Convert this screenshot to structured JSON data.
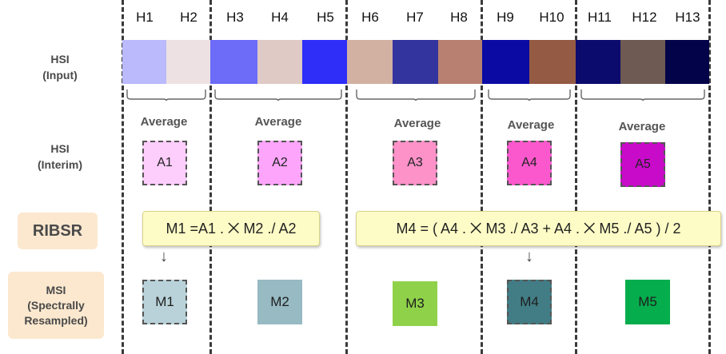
{
  "bands": [
    {
      "label": "H1",
      "color": "#babafd"
    },
    {
      "label": "H2",
      "color": "#ede1e3"
    },
    {
      "label": "H3",
      "color": "#6c6cf9"
    },
    {
      "label": "H4",
      "color": "#dfcac5"
    },
    {
      "label": "H5",
      "color": "#2e2ef8"
    },
    {
      "label": "H6",
      "color": "#d3b1a2"
    },
    {
      "label": "H7",
      "color": "#34349f"
    },
    {
      "label": "H8",
      "color": "#b88070"
    },
    {
      "label": "H9",
      "color": "#0b0ba3"
    },
    {
      "label": "H10",
      "color": "#945a43"
    },
    {
      "label": "H11",
      "color": "#0b0b6d"
    },
    {
      "label": "H12",
      "color": "#6e5a52"
    },
    {
      "label": "H13",
      "color": "#03034a"
    }
  ],
  "rows": {
    "input": {
      "line1": "HSI",
      "line2": "(Input)"
    },
    "interim": {
      "line1": "HSI",
      "line2": "(Interim)"
    },
    "ribsr": "RIBSR",
    "msi": {
      "line1": "MSI",
      "line2": "(Spectrally",
      "line3": "Resampled)"
    }
  },
  "averages": [
    {
      "label": "Average",
      "box": "A1",
      "color": "#fdcdfb"
    },
    {
      "label": "Average",
      "box": "A2",
      "color": "#fca5fb"
    },
    {
      "label": "Average",
      "box": "A3",
      "color": "#fc92c8"
    },
    {
      "label": "Average",
      "box": "A4",
      "color": "#fc58cd"
    },
    {
      "label": "Average",
      "box": "A5",
      "color": "#c80bc8"
    }
  ],
  "formulas": {
    "m1": "M1 =A1 . ⨉ M2 ./ A2",
    "m4": "M4 = ( A4 . ⨉ M3 ./ A3 + A4 . ⨉ M5 ./ A5 ) / 2"
  },
  "arrows": [
    "↓",
    "↓"
  ],
  "msi_boxes": [
    {
      "label": "M1",
      "color": "#b9d2d9",
      "dashed": true
    },
    {
      "label": "M2",
      "color": "#97bac3",
      "dashed": false
    },
    {
      "label": "M3",
      "color": "#8fd24a",
      "dashed": false
    },
    {
      "label": "M4",
      "color": "#427d85",
      "dashed": true
    },
    {
      "label": "M5",
      "color": "#06ad4c",
      "dashed": false
    }
  ]
}
